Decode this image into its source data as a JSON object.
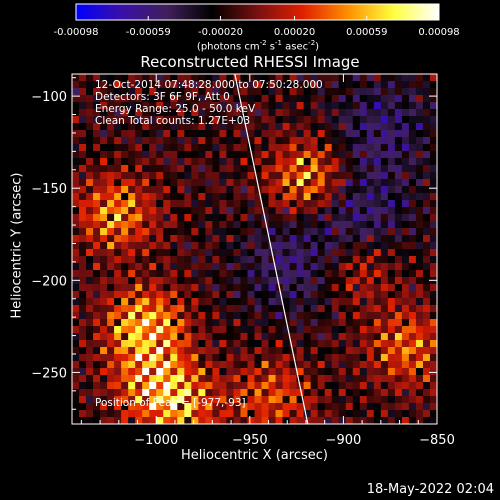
{
  "colorbar": {
    "tick_labels": [
      "-0.00098",
      "-0.00059",
      "-0.00020",
      "0.00020",
      "0.00059",
      "0.00098"
    ],
    "range": [
      -0.00098,
      0.00098
    ],
    "unit_prefix": "(photons cm",
    "unit_exp1": "-2",
    "unit_mid1": " s",
    "unit_exp2": "-1",
    "unit_mid2": " asec",
    "unit_exp3": "-2",
    "unit_suffix": ")",
    "colormap": [
      "#0000ff",
      "#3a0fa8",
      "#40205a",
      "#000000",
      "#7a1010",
      "#e02000",
      "#ff9000",
      "#ffff40",
      "#ffffff"
    ]
  },
  "chart_data": {
    "type": "heatmap",
    "title": "Reconstructed RHESSI Image",
    "xlabel": "Heliocentric X (arcsec)",
    "ylabel": "Heliocentric Y (arcsec)",
    "xlim": [
      -1045,
      -850
    ],
    "ylim": [
      -278,
      -88
    ],
    "x_ticks": [
      -1000,
      -950,
      -900,
      -850
    ],
    "x_tick_labels": [
      "−1000",
      "−950",
      "−900",
      "−850"
    ],
    "y_ticks": [
      -100,
      -150,
      -200,
      -250
    ],
    "y_tick_labels": [
      "−100",
      "−150",
      "−200",
      "−250"
    ],
    "limb_line": {
      "x": [
        -958,
        -919
      ],
      "y": [
        -88,
        -278
      ]
    },
    "annotations": [
      "12-Oct-2014 07:48:28.000 to 07:50:28.000",
      "Detectors: 3F 6F 9F, Att 0",
      "Energy Range: 25.0 - 50.0 keV",
      "Clean      Total counts: 1.27E+03"
    ],
    "peak_label": "Position of Peak = [-977,-93]",
    "peak_position": [
      -977,
      -93
    ]
  },
  "timestamp": "18-May-2022 02:04"
}
